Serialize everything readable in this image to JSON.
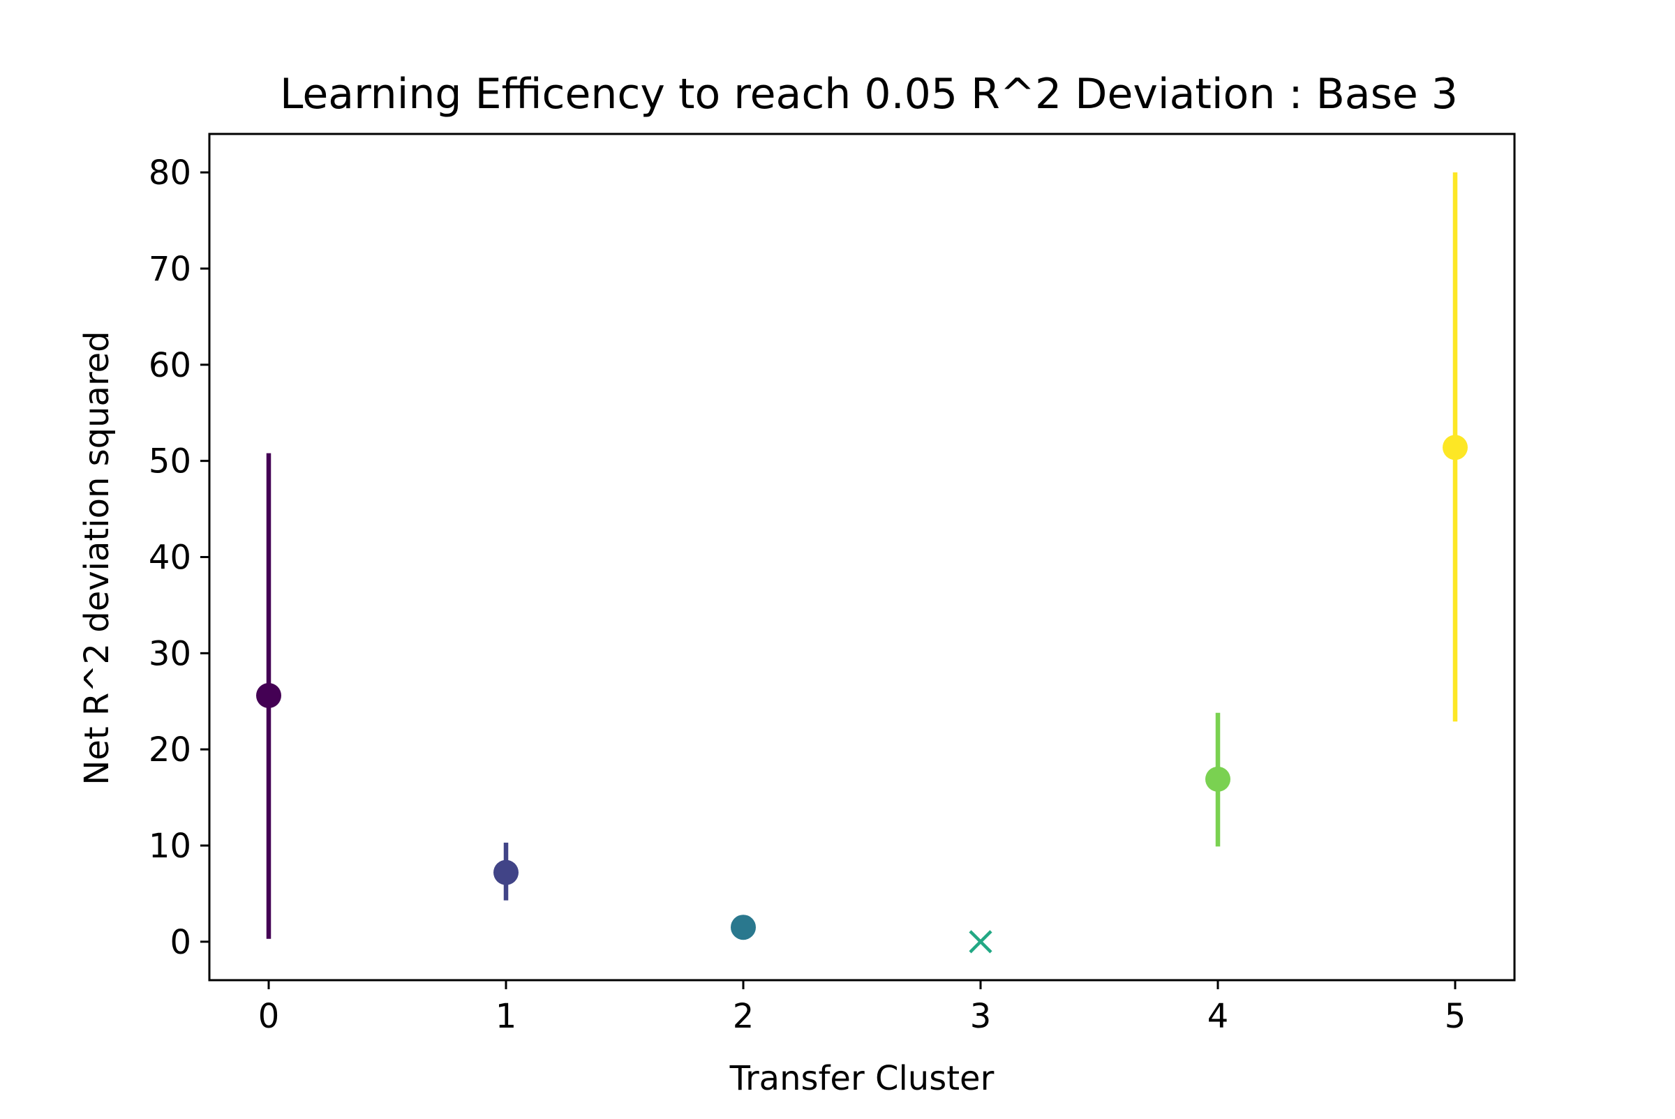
{
  "chart_data": {
    "type": "scatter",
    "title": "Learning Efficency to reach 0.05 R^2 Deviation : Base 3",
    "xlabel": "Transfer Cluster",
    "ylabel": "Net R^2 deviation squared",
    "xlim": [
      -0.25,
      5.25
    ],
    "ylim": [
      -4,
      84
    ],
    "x_ticks": [
      0,
      1,
      2,
      3,
      4,
      5
    ],
    "y_ticks": [
      0,
      10,
      20,
      30,
      40,
      50,
      60,
      70,
      80
    ],
    "grid": false,
    "legend": "none",
    "points": [
      {
        "x": 0,
        "y": 25.6,
        "err_low": 0.3,
        "err_high": 50.8,
        "marker": "circle",
        "color": "#440154"
      },
      {
        "x": 1,
        "y": 7.2,
        "err_low": 4.3,
        "err_high": 10.3,
        "marker": "circle",
        "color": "#414487"
      },
      {
        "x": 2,
        "y": 1.5,
        "err_low": 1.5,
        "err_high": 1.5,
        "marker": "circle",
        "color": "#2a788e"
      },
      {
        "x": 3,
        "y": 0.0,
        "marker": "x",
        "color": "#22a884"
      },
      {
        "x": 4,
        "y": 16.9,
        "err_low": 9.9,
        "err_high": 23.8,
        "marker": "circle",
        "color": "#7ad151"
      },
      {
        "x": 5,
        "y": 51.4,
        "err_low": 22.9,
        "err_high": 80.0,
        "marker": "circle",
        "color": "#fde725"
      }
    ]
  }
}
